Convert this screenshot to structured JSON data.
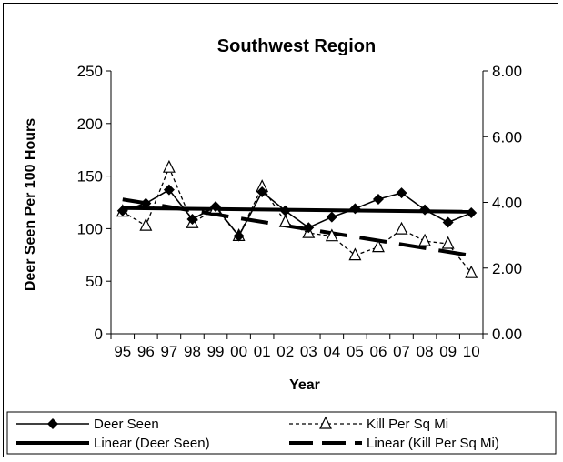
{
  "chart_data": {
    "type": "line",
    "title": "Southwest Region",
    "xlabel": "Year",
    "ylabel": "Deer Seen Per 100 Hours",
    "y2label": "",
    "categories": [
      "95",
      "96",
      "97",
      "98",
      "99",
      "00",
      "01",
      "02",
      "03",
      "04",
      "05",
      "06",
      "07",
      "08",
      "09",
      "10"
    ],
    "ylim": [
      0,
      250
    ],
    "yticks": [
      "0",
      "50",
      "100",
      "150",
      "200",
      "250"
    ],
    "y2lim": [
      0,
      8
    ],
    "y2ticks": [
      "0.00",
      "2.00",
      "4.00",
      "6.00",
      "8.00"
    ],
    "grid": false,
    "legend_position": "bottom",
    "series": [
      {
        "name": "Deer Seen",
        "axis": "left",
        "marker": "diamond",
        "style": "solid",
        "values": [
          117,
          124,
          137,
          109,
          121,
          93,
          135,
          117,
          101,
          111,
          119,
          128,
          134,
          118,
          106,
          115
        ]
      },
      {
        "name": "Kill Per Sq Mi",
        "axis": "right",
        "marker": "triangle",
        "style": "dashed",
        "values": [
          3.72,
          3.29,
          5.06,
          3.37,
          3.81,
          2.98,
          4.47,
          3.4,
          3.07,
          2.97,
          2.39,
          2.64,
          3.18,
          2.82,
          2.74,
          1.85
        ]
      },
      {
        "name": "Linear (Deer Seen)",
        "axis": "left",
        "style": "thick-solid",
        "trend_of": 0
      },
      {
        "name": "Linear (Kill Per Sq Mi)",
        "axis": "right",
        "style": "thick-dashed",
        "trend_of": 1
      }
    ]
  }
}
